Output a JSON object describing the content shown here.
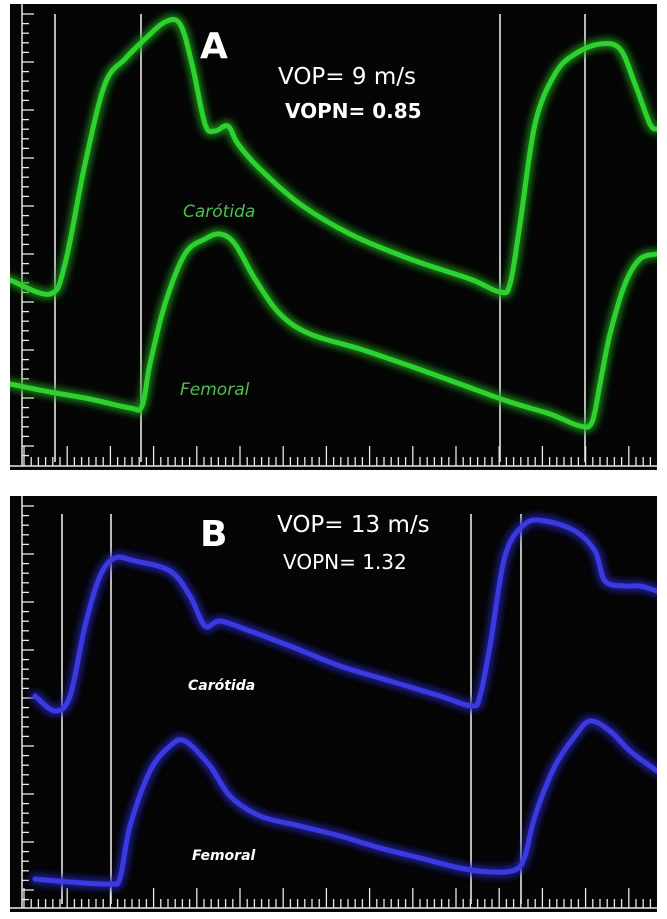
{
  "panels": [
    {
      "letter": "A",
      "vop": "VOP= 9 m/s",
      "vopn": "VOPN= 0.85",
      "colors": {
        "trace": "#2ed12e",
        "glow": "#1f8f1f",
        "label": "#4fbf4f"
      },
      "labels": {
        "carotid": "Carótida",
        "femoral": "Femoral"
      }
    },
    {
      "letter": "B",
      "vop": "VOP= 13 m/s",
      "vopn": "VOPN= 1.32",
      "colors": {
        "trace": "#3a3ae0",
        "glow": "#2424a8",
        "label": "#ffffff"
      },
      "labels": {
        "carotid": "Carótida",
        "femoral": "Femoral"
      }
    }
  ],
  "colors": {
    "background": "#050505",
    "grid": "#e8e8e8",
    "page": "#ffffff"
  }
}
